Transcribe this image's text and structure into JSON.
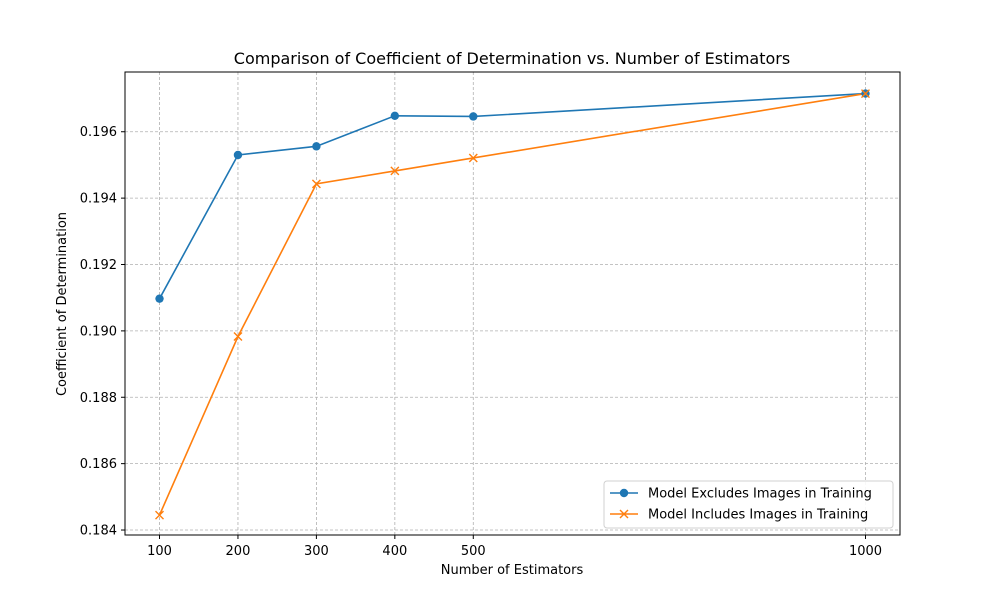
{
  "chart_data": {
    "type": "line",
    "title": "Comparison of Coefficient of Determination vs. Number of Estimators",
    "xlabel": "Number of Estimators",
    "ylabel": "Coefficient of Determination",
    "x": [
      100,
      200,
      300,
      400,
      500,
      1000
    ],
    "x_ticks": [
      "100",
      "200",
      "300",
      "400",
      "500",
      "1000"
    ],
    "y_ticks": [
      "0.184",
      "0.186",
      "0.188",
      "0.190",
      "0.192",
      "0.194",
      "0.196"
    ],
    "xlim": [
      56,
      1044
    ],
    "ylim": [
      0.18385,
      0.1978
    ],
    "grid": true,
    "legend_position": "lower-right",
    "series": [
      {
        "name": "Model Excludes Images in Training",
        "values": [
          0.19097,
          0.1953,
          0.19556,
          0.19648,
          0.19646,
          0.19715
        ],
        "color": "#1f77b4",
        "marker": "circle"
      },
      {
        "name": "Model Includes Images in Training",
        "values": [
          0.18445,
          0.18983,
          0.19443,
          0.19482,
          0.19521,
          0.19715
        ],
        "color": "#ff7f0e",
        "marker": "x"
      }
    ]
  }
}
